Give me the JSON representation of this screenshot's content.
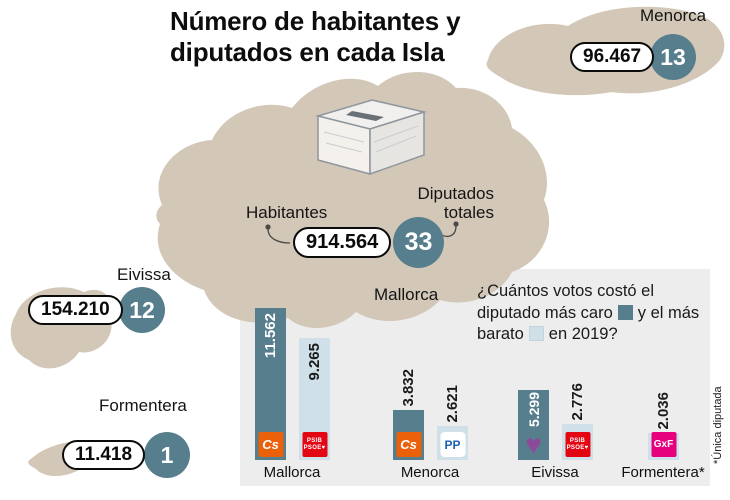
{
  "title": "Número de habitantes y diputados en cada Isla",
  "callouts": {
    "habitantes": "Habitantes",
    "diputados_totales": "Diputados totales"
  },
  "islands": {
    "menorca": {
      "name": "Menorca",
      "habitantes": "96.467",
      "diputados": "13"
    },
    "mallorca": {
      "name": "Mallorca",
      "habitantes": "914.564",
      "diputados": "33"
    },
    "eivissa": {
      "name": "Eivissa",
      "habitantes": "154.210",
      "diputados": "12"
    },
    "formentera": {
      "name": "Formentera",
      "habitantes": "11.418",
      "diputados": "1"
    }
  },
  "question": {
    "part1": "¿Cuántos votos costó el diputado más caro",
    "part2": "y el más barato",
    "part3": "en 2019?"
  },
  "footnote": "*Única diputada",
  "logos": {
    "cs": "Cs",
    "psib_line1": "PSIB",
    "psib_line2": "PSOE♥",
    "pp": "PP",
    "podemos_heart": "♥",
    "gxf": "GxF"
  },
  "colors": {
    "island": "#d3c8b8",
    "badge": "#577e8d",
    "bar_dark": "#577e8d",
    "bar_light": "#cfe0e8",
    "panel_bg": "#ededed",
    "cs_orange": "#eb6109",
    "psoe_red": "#e30613",
    "pp_blue": "#1d62ad",
    "podemos_purple": "#8d4a9b",
    "gxf_pink": "#e6007e"
  },
  "chart_data": {
    "type": "bar",
    "title": "¿Cuántos votos costó el diputado más caro y el más barato en 2019?",
    "note": "*Única diputada",
    "categories": [
      "Mallorca",
      "Menorca",
      "Eivissa",
      "Formentera*"
    ],
    "series": [
      {
        "name": "diputado más caro",
        "color": "#577e8d",
        "values": [
          11562,
          3832,
          5299,
          null
        ]
      },
      {
        "name": "diputado más barato",
        "color": "#cfe0e8",
        "values": [
          9265,
          2621,
          2776,
          2036
        ]
      }
    ],
    "bars": [
      {
        "category": "Mallorca",
        "series": "más caro",
        "value": 11562,
        "label": "11.562",
        "party": "Cs"
      },
      {
        "category": "Mallorca",
        "series": "más barato",
        "value": 9265,
        "label": "9.265",
        "party": "PSIB-PSOE"
      },
      {
        "category": "Menorca",
        "series": "más caro",
        "value": 3832,
        "label": "3.832",
        "party": "Cs"
      },
      {
        "category": "Menorca",
        "series": "más barato",
        "value": 2621,
        "label": "2.621",
        "party": "PP"
      },
      {
        "category": "Eivissa",
        "series": "más caro",
        "value": 5299,
        "label": "5.299",
        "party": "Unidas Podemos"
      },
      {
        "category": "Eivissa",
        "series": "más barato",
        "value": 2776,
        "label": "2.776",
        "party": "PSIB-PSOE"
      },
      {
        "category": "Formentera",
        "series": "única diputada",
        "value": 2036,
        "label": "2.036",
        "party": "GxF"
      }
    ]
  }
}
